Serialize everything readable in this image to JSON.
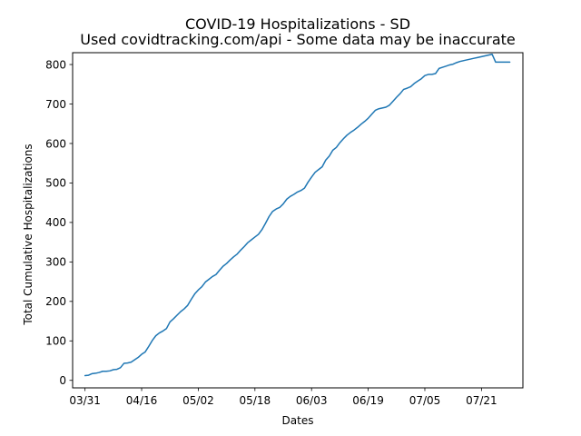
{
  "chart_data": {
    "type": "line",
    "title": "COVID-19 Hospitalizations - SD",
    "subtitle": "Used covidtracking.com/api - Some data may be inaccurate",
    "xlabel": "Dates",
    "ylabel": "Total Cumulative Hospitalizations",
    "ylim": [
      -19,
      830
    ],
    "xlim": [
      -3.5,
      123.7
    ],
    "yticks": [
      0,
      100,
      200,
      300,
      400,
      500,
      600,
      700,
      800
    ],
    "xticks": [
      {
        "x": 0,
        "label": "03/31"
      },
      {
        "x": 16,
        "label": "04/16"
      },
      {
        "x": 32,
        "label": "05/02"
      },
      {
        "x": 48,
        "label": "05/18"
      },
      {
        "x": 64,
        "label": "06/03"
      },
      {
        "x": 80,
        "label": "06/19"
      },
      {
        "x": 96,
        "label": "07/05"
      },
      {
        "x": 112,
        "label": "07/21"
      }
    ],
    "grid": false,
    "line_color": "#1f77b4",
    "series": [
      {
        "x": [
          0,
          1,
          2,
          3,
          4,
          5,
          6,
          7,
          8,
          9,
          10,
          11,
          12,
          13,
          14,
          15,
          16,
          17,
          18,
          19,
          20,
          21,
          22,
          23,
          24,
          25,
          26,
          27,
          28,
          29,
          30,
          31,
          32,
          33,
          34,
          35,
          36,
          37,
          38,
          39,
          40,
          41,
          42,
          43,
          44,
          45,
          46,
          47,
          48,
          49,
          50,
          51,
          52,
          53,
          54,
          55,
          56,
          57,
          58,
          59,
          60,
          61,
          62,
          63,
          64,
          65,
          66,
          67,
          68,
          69,
          70,
          71,
          72,
          73,
          74,
          75,
          76,
          77,
          78,
          79,
          80,
          81,
          82,
          83,
          84,
          85,
          86,
          87,
          88,
          89,
          90,
          91,
          92,
          93,
          94,
          95,
          96,
          97,
          98,
          99,
          100,
          101,
          102,
          103,
          104,
          105,
          106,
          107,
          108,
          109,
          110,
          111,
          112,
          113,
          114,
          115,
          116,
          117,
          118,
          119,
          120
        ],
        "y": [
          12,
          13,
          17,
          18,
          20,
          23,
          23,
          24,
          27,
          28,
          32,
          43,
          44,
          46,
          52,
          58,
          66,
          72,
          86,
          101,
          113,
          120,
          125,
          131,
          148,
          156,
          165,
          174,
          181,
          190,
          205,
          219,
          229,
          237,
          249,
          256,
          263,
          268,
          279,
          289,
          296,
          305,
          313,
          320,
          330,
          339,
          349,
          356,
          363,
          370,
          382,
          398,
          415,
          428,
          434,
          438,
          447,
          459,
          466,
          471,
          477,
          481,
          487,
          502,
          515,
          527,
          534,
          541,
          558,
          568,
          583,
          590,
          602,
          612,
          621,
          628,
          634,
          641,
          649,
          656,
          664,
          674,
          684,
          688,
          690,
          692,
          697,
          707,
          717,
          726,
          737,
          740,
          744,
          752,
          758,
          764,
          772,
          775,
          775,
          777,
          790,
          793,
          796,
          799,
          801,
          805,
          808,
          810,
          812,
          814,
          816,
          818,
          820,
          822,
          824,
          826,
          806,
          806,
          806,
          806,
          806
        ]
      }
    ]
  }
}
